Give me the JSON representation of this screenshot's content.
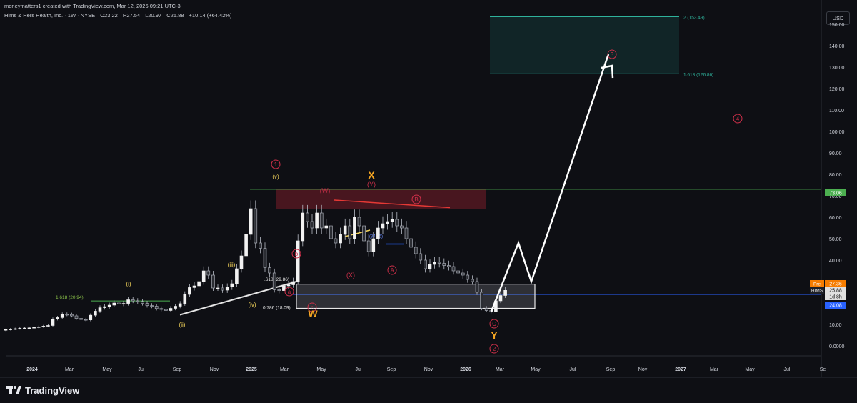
{
  "header": {
    "credit": "moneymatters1 created with TradingView.com, Mar 12, 2026 09:21 UTC-3",
    "symbol": "Hims & Hers Health, Inc. · 1W · NYSE",
    "open": "O23.22",
    "high": "H27.54",
    "low": "L20.97",
    "close": "C25.88",
    "change": "+10.14 (+64.42%)",
    "currency": "USD"
  },
  "footer": {
    "brand": "TradingView"
  },
  "colors": {
    "background": "#0e0f14",
    "up": "#e8e8e8",
    "accent_green": "#4caf50",
    "accent_blue": "#2962ff",
    "wave_red": "#d0304a",
    "wave_yellow": "#f3d35a",
    "wave_orange": "#f5a623",
    "target_teal": "#2fb29b",
    "pre": "#f57c00"
  },
  "chart_data": {
    "type": "candlestick",
    "ylim": [
      0,
      153
    ],
    "y_ticks": [
      "150.00",
      "140.00",
      "130.00",
      "120.00",
      "110.00",
      "100.00",
      "90.00",
      "80.00",
      "70.00",
      "60.00",
      "50.00",
      "40.00",
      "30.00",
      "20.00",
      "10.00",
      "0.0000"
    ],
    "x_ticks": [
      "2024",
      "Mar",
      "May",
      "Jul",
      "Sep",
      "Nov",
      "2025",
      "Mar",
      "May",
      "Jul",
      "Sep",
      "Nov",
      "2026",
      "Mar",
      "May",
      "Jul",
      "Sep",
      "Nov",
      "2027",
      "Mar",
      "May",
      "Jul",
      "Se"
    ],
    "approx_weekly_closes": [
      7.6,
      7.8,
      8.0,
      8.2,
      8.3,
      8.4,
      8.6,
      8.9,
      9.2,
      9.5,
      12.5,
      13.2,
      14.7,
      14.6,
      14.0,
      12.8,
      12.3,
      12.1,
      14.3,
      16.2,
      17.8,
      18.3,
      19.0,
      20.0,
      19.5,
      19.8,
      21.5,
      21.0,
      20.7,
      19.8,
      18.8,
      18.5,
      17.4,
      17.0,
      16.5,
      17.5,
      18.5,
      19.7,
      24.0,
      27.2,
      28.0,
      30.0,
      35.0,
      33.0,
      27.0,
      27.0,
      26.0,
      27.5,
      29.0,
      36.0,
      42.0,
      52.0,
      64.0,
      48.0,
      45.5,
      36.5,
      34.0,
      26.2,
      25.8,
      28.0,
      28.5,
      30.0,
      49.0,
      62.0,
      58.0,
      55.0,
      62.0,
      55.0,
      56.0,
      50.0,
      48.0,
      52.0,
      56.0,
      50.0,
      60.0,
      56.0,
      49.0,
      44.0,
      50.0,
      55.0,
      57.0,
      58.0,
      59.0,
      56.0,
      55.0,
      50.0,
      46.0,
      43.0,
      40.0,
      36.0,
      38.0,
      39.0,
      38.5,
      37.5,
      37.0,
      35.0,
      34.0,
      33.0,
      31.0,
      30.0,
      25.0,
      17.5,
      16.5,
      16.0,
      21.0,
      23.5,
      25.9
    ],
    "price_labels": [
      {
        "label": "Pre",
        "value": "27.36",
        "color": "#f57c00"
      },
      {
        "label": "HIMS",
        "value": "25.88",
        "color": "#e0e0e0"
      },
      {
        "label": "",
        "value": "1d 8h",
        "color": "#e0e0e0"
      },
      {
        "label": "",
        "value": "24.08",
        "color": "#2962ff"
      },
      {
        "label": "",
        "value": "73.06",
        "color": "#4caf50"
      }
    ],
    "horizontal_lines": [
      {
        "name": "resistance",
        "value": 73.06,
        "color": "#4caf50"
      },
      {
        "name": "support",
        "value": 24.08,
        "color": "#2962ff"
      },
      {
        "name": "fib-1.618-left",
        "value": 20.94,
        "color": "#4caf50"
      }
    ],
    "fib_labels": {
      "left": "1.618 (20.94)",
      "f618": ".618 (29.86)",
      "f786": "0.786 (18.09)",
      "target_low": "1.618 (126.86)",
      "target_high": "2 (153.49)",
      "mid": "(34.65)"
    },
    "wave_labels": {
      "one": "1",
      "two": "2",
      "three": "3",
      "four": "4",
      "i": "(i)",
      "ii": "(ii)",
      "iii": "(iii)",
      "iv": "(iv)",
      "v": "(v)",
      "W_cap": "(W)",
      "X_cap": "(X)",
      "Y_cap": "(Y)",
      "X": "X",
      "W": "W",
      "Y": "Y",
      "A": "A",
      "B": "B",
      "C": "C",
      "a": "a",
      "b": "b",
      "c": "c"
    }
  }
}
